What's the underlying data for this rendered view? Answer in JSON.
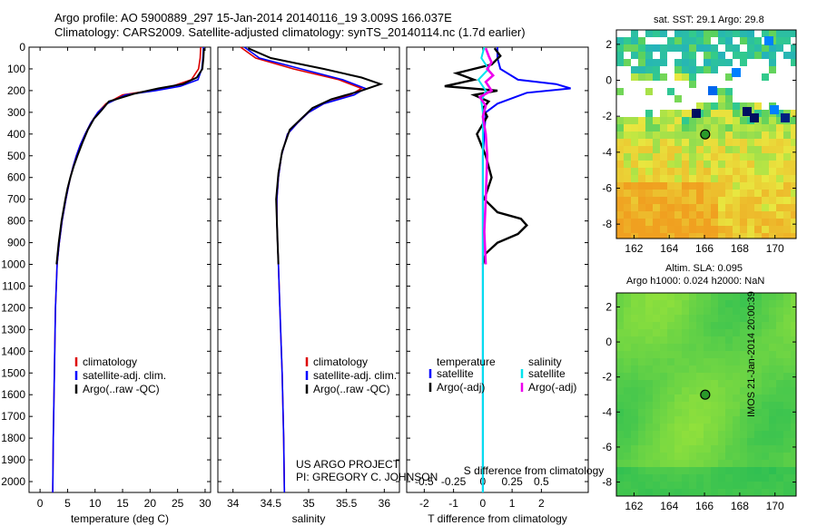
{
  "header": {
    "title_line1": "Argo profile: AO 5900889_297 15-Jan-2014 20140116_19 3.009S 166.037E",
    "title_line2": "Climatology: CARS2009. Satellite-adjusted climatology: synTS_20140114.nc (1.7d earlier)"
  },
  "side": {
    "sst_title": "sat. SST: 29.1 Argo: 29.8",
    "sla_line1": "Altim. SLA: 0.095",
    "sla_line2": "Argo h1000: 0.024 h2000: NaN",
    "watermark": "IMOS 21-Jan-2014 20:00:39"
  },
  "credits": {
    "line1": "US ARGO PROJECT",
    "line2": "PI: GREGORY C. JOHNSON"
  },
  "colors": {
    "climatology": "#dd0000",
    "satellite": "#0000ff",
    "argo": "#000000",
    "salinity_satellite": "#00e5ee",
    "salinity_argo": "#ee00ee"
  },
  "chart_data": [
    {
      "type": "line",
      "xlabel": "temperature (deg C)",
      "ylim": [
        2050,
        0
      ],
      "xlim": [
        -2,
        31
      ],
      "xticks": [
        0,
        5,
        10,
        15,
        20,
        25,
        30
      ],
      "yticks": [
        0,
        100,
        200,
        300,
        400,
        500,
        600,
        700,
        800,
        900,
        1000,
        1100,
        1200,
        1300,
        1400,
        1500,
        1600,
        1700,
        1800,
        1900,
        2000
      ],
      "legend": [
        "climatology",
        "satellite-adj. clim.",
        "Argo(..raw -QC)"
      ],
      "series": [
        {
          "name": "climatology",
          "x": [
            29.2,
            29.1,
            28.8,
            27.5,
            24,
            20,
            15,
            12,
            10.5,
            9.2,
            8.2,
            7.3,
            6.6,
            6.0,
            5.5,
            5.1,
            4.7,
            4.0,
            3.5,
            3.1,
            2.8,
            2.6,
            2.4,
            2.3
          ],
          "y": [
            0,
            50,
            100,
            150,
            180,
            200,
            220,
            260,
            300,
            350,
            400,
            450,
            500,
            550,
            600,
            650,
            700,
            800,
            900,
            1000,
            1200,
            1500,
            1800,
            2050
          ]
        },
        {
          "name": "satellite-adj. clim.",
          "x": [
            29.7,
            29.6,
            29.4,
            28.7,
            25.5,
            21,
            15.5,
            12.2,
            10.5,
            9.2,
            8.2,
            7.3,
            6.6,
            6.0,
            5.5,
            5.1,
            4.7,
            4.0,
            3.5,
            3.1,
            2.8,
            2.6,
            2.4,
            2.3
          ],
          "y": [
            0,
            50,
            100,
            150,
            180,
            200,
            220,
            260,
            300,
            350,
            400,
            450,
            500,
            550,
            600,
            650,
            700,
            800,
            900,
            1000,
            1200,
            1500,
            1800,
            2050
          ]
        },
        {
          "name": "Argo(..raw -QC)",
          "x": [
            29.8,
            29.7,
            29.5,
            28.5,
            26,
            21.5,
            17,
            12.5,
            11.2,
            9.8,
            8.7,
            7.7,
            6.8,
            6.1,
            5.5,
            5.0,
            4.6,
            3.9,
            3.4,
            3.0
          ],
          "y": [
            5,
            50,
            100,
            140,
            170,
            190,
            215,
            250,
            290,
            330,
            380,
            440,
            500,
            550,
            600,
            650,
            700,
            800,
            900,
            1000
          ]
        }
      ]
    },
    {
      "type": "line",
      "xlabel": "salinity",
      "ylim": [
        2050,
        0
      ],
      "xlim": [
        33.8,
        36.2
      ],
      "xticks": [
        34,
        34.5,
        35,
        35.5,
        36
      ],
      "legend": [
        "climatology",
        "satellite-adj. clim.",
        "Argo(..raw -QC)"
      ],
      "series": [
        {
          "name": "climatology",
          "x": [
            34.1,
            34.3,
            34.8,
            35.4,
            35.7,
            35.55,
            35.2,
            35.0,
            34.85,
            34.72,
            34.64,
            34.6,
            34.58,
            34.58,
            34.59,
            34.6,
            34.62,
            34.65,
            34.67,
            34.68
          ],
          "y": [
            0,
            50,
            100,
            150,
            190,
            220,
            260,
            300,
            350,
            400,
            500,
            600,
            700,
            800,
            900,
            1000,
            1200,
            1500,
            1800,
            2050
          ]
        },
        {
          "name": "satellite-adj. clim.",
          "x": [
            34.15,
            34.35,
            34.9,
            35.45,
            35.75,
            35.6,
            35.2,
            35.0,
            34.85,
            34.72,
            34.64,
            34.6,
            34.58,
            34.58,
            34.59,
            34.6,
            34.62,
            34.65,
            34.67,
            34.68
          ],
          "y": [
            0,
            50,
            100,
            150,
            190,
            220,
            260,
            300,
            350,
            400,
            500,
            600,
            700,
            800,
            900,
            1000,
            1200,
            1500,
            1800,
            2050
          ]
        },
        {
          "name": "Argo(..raw -QC)",
          "x": [
            34.2,
            34.5,
            35.2,
            35.7,
            35.95,
            35.7,
            35.3,
            35.05,
            34.9,
            34.75,
            34.65,
            34.6,
            34.57,
            34.58,
            34.59,
            34.6
          ],
          "y": [
            5,
            50,
            100,
            140,
            170,
            200,
            240,
            280,
            330,
            380,
            480,
            580,
            700,
            800,
            900,
            1000
          ]
        }
      ]
    },
    {
      "type": "line",
      "xlabel_top": "S difference from climatology",
      "xlabel": "T difference from climatology",
      "ylim": [
        2050,
        0
      ],
      "xlim": [
        -2.6,
        3.6
      ],
      "xticks": [
        -2,
        -1,
        0,
        1,
        2
      ],
      "xticks_top": [
        -0.5,
        -0.25,
        0,
        0.25,
        0.5
      ],
      "legend": [
        "temperature",
        "satellite",
        "Argo(-adj)",
        "salinity",
        "satellite",
        "Argo(-adj)"
      ],
      "series": [
        {
          "name": "temperature satellite",
          "x": [
            0.5,
            0.5,
            0.6,
            1.2,
            2.5,
            3.0,
            1.5,
            0.5,
            0.1,
            0.05,
            0,
            0,
            0,
            0,
            0,
            0
          ],
          "y": [
            0,
            50,
            100,
            150,
            170,
            190,
            210,
            260,
            300,
            400,
            500,
            700,
            1000,
            1300,
            1700,
            2050
          ]
        },
        {
          "name": "temperature Argo(-adj)",
          "x": [
            0.4,
            0.6,
            0.3,
            -0.9,
            -0.3,
            -1.3,
            0.5,
            -0.3,
            0.2,
            0.0,
            0.15,
            -0.2,
            0.1,
            0.3,
            0.05,
            0.5,
            1.3,
            1.5,
            1.2,
            0.5,
            0.1,
            0.0
          ],
          "y": [
            5,
            40,
            80,
            120,
            150,
            180,
            200,
            220,
            250,
            280,
            320,
            400,
            500,
            600,
            700,
            760,
            790,
            820,
            860,
            900,
            950,
            1000
          ]
        },
        {
          "name": "salinity satellite",
          "x": [
            0.05,
            -0.05,
            0.2,
            -0.15,
            0.1,
            -0.05,
            0.0,
            0.0,
            0.0,
            0.0,
            0.0
          ],
          "y": [
            0,
            50,
            100,
            150,
            200,
            250,
            300,
            500,
            1000,
            1500,
            2050
          ]
        },
        {
          "name": "salinity Argo(-adj)",
          "x": [
            0.1,
            0.2,
            0.3,
            0.15,
            0.35,
            0.1,
            0.3,
            -0.1,
            0.1,
            0.0,
            0.1,
            0.15,
            0.1,
            0.05,
            0.1
          ],
          "y": [
            5,
            40,
            70,
            100,
            130,
            160,
            200,
            230,
            270,
            320,
            400,
            500,
            700,
            850,
            1000
          ]
        }
      ]
    },
    {
      "type": "heatmap",
      "title": "sat. SST: 29.1 Argo: 29.8",
      "xlim": [
        161,
        171.2
      ],
      "ylim": [
        -8.8,
        2.8
      ],
      "xticks": [
        162,
        164,
        166,
        168,
        170
      ],
      "yticks": [
        2,
        0,
        -2,
        -4,
        -6,
        -8
      ],
      "marker": {
        "lon": 166.04,
        "lat": -3.01
      }
    },
    {
      "type": "heatmap",
      "title": "Altim. SLA: 0.095",
      "xlim": [
        161,
        171.2
      ],
      "ylim": [
        -8.8,
        2.8
      ],
      "xticks": [
        162,
        164,
        166,
        168,
        170
      ],
      "yticks": [
        2,
        0,
        -2,
        -4,
        -6,
        -8
      ],
      "marker": {
        "lon": 166.04,
        "lat": -3.01
      }
    }
  ]
}
